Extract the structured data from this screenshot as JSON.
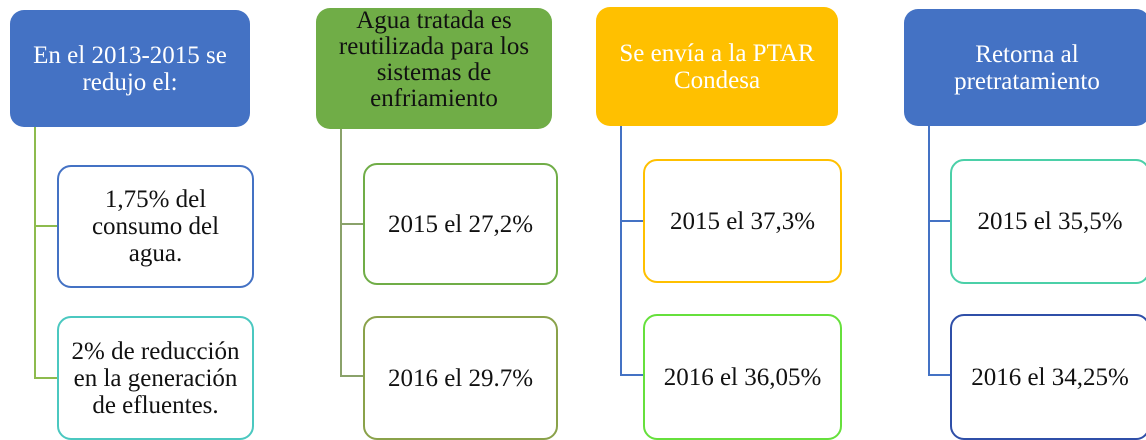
{
  "columns": [
    {
      "header": "En el 2013-2015 se redujo el:",
      "items": [
        "1,75% del consumo del agua.",
        "2% de reducción en la generación de efluentes."
      ]
    },
    {
      "header": "Agua tratada es reutilizada para los sistemas de enfriamiento",
      "items": [
        "2015 el 27,2%",
        "2016 el 29.7%"
      ]
    },
    {
      "header": "Se envía a la PTAR Condesa",
      "items": [
        "2015 el 37,3%",
        "2016 el 36,05%"
      ]
    },
    {
      "header": "Retorna al pretratamiento",
      "items": [
        "2015 el 35,5%",
        "2016 el 34,25%"
      ]
    }
  ]
}
